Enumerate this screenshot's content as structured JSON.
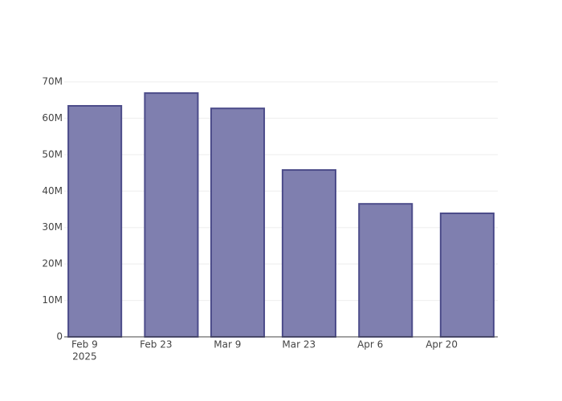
{
  "chart_data": {
    "type": "bar",
    "x": [
      "2025-02-11",
      "2025-02-26",
      "2025-03-11",
      "2025-03-25",
      "2025-04-09",
      "2025-04-25"
    ],
    "values": [
      63400000,
      66900000,
      62700000,
      45800000,
      36500000,
      33900000
    ],
    "color": "#7f7faf",
    "line_color": "#4c4c8a",
    "xlim": [
      "2025-02-05",
      "2025-05-01"
    ],
    "xticks": [
      {
        "value": "2025-02-09",
        "label": "Feb 9",
        "sublabel": "2025"
      },
      {
        "value": "2025-02-23",
        "label": "Feb 23"
      },
      {
        "value": "2025-03-09",
        "label": "Mar 9"
      },
      {
        "value": "2025-03-23",
        "label": "Mar 23"
      },
      {
        "value": "2025-04-06",
        "label": "Apr 6"
      },
      {
        "value": "2025-04-20",
        "label": "Apr 20"
      }
    ],
    "ylim": [
      0,
      70000000
    ],
    "yticks": [
      0,
      {
        "value": 10000000,
        "label": "10M"
      },
      {
        "value": 20000000,
        "label": "20M"
      },
      {
        "value": 30000000,
        "label": "30M"
      },
      {
        "value": 40000000,
        "label": "40M"
      },
      {
        "value": 50000000,
        "label": "50M"
      },
      {
        "value": 60000000,
        "label": "60M"
      },
      {
        "value": 70000000,
        "label": "70M"
      }
    ],
    "grid": true
  }
}
